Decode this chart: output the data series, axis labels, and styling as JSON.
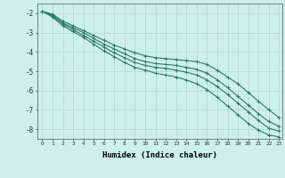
{
  "xlabel": "Humidex (Indice chaleur)",
  "ylabel": "",
  "background_color": "#cdf0e8",
  "grid_color": "#b0d8cc",
  "line_color": "#2d7a6a",
  "xlim": [
    -0.5,
    23.3
  ],
  "ylim": [
    -8.5,
    -1.5
  ],
  "xticks": [
    0,
    1,
    2,
    3,
    4,
    5,
    6,
    7,
    8,
    9,
    10,
    11,
    12,
    13,
    14,
    15,
    16,
    17,
    18,
    19,
    20,
    21,
    22,
    23
  ],
  "yticks": [
    -8,
    -7,
    -6,
    -5,
    -4,
    -3,
    -2
  ],
  "series": [
    [
      -1.9,
      -2.05,
      -2.4,
      -2.65,
      -2.9,
      -3.15,
      -3.4,
      -3.65,
      -3.85,
      -4.05,
      -4.2,
      -4.3,
      -4.35,
      -4.4,
      -4.45,
      -4.5,
      -4.65,
      -4.95,
      -5.3,
      -5.65,
      -6.1,
      -6.55,
      -7.0,
      -7.4
    ],
    [
      -1.9,
      -2.1,
      -2.5,
      -2.75,
      -3.0,
      -3.3,
      -3.6,
      -3.85,
      -4.1,
      -4.35,
      -4.5,
      -4.6,
      -4.65,
      -4.7,
      -4.8,
      -4.9,
      -5.1,
      -5.45,
      -5.85,
      -6.3,
      -6.75,
      -7.2,
      -7.6,
      -7.85
    ],
    [
      -1.9,
      -2.15,
      -2.55,
      -2.85,
      -3.15,
      -3.45,
      -3.75,
      -4.05,
      -4.3,
      -4.55,
      -4.7,
      -4.8,
      -4.85,
      -4.95,
      -5.05,
      -5.2,
      -5.45,
      -5.8,
      -6.2,
      -6.65,
      -7.1,
      -7.55,
      -7.95,
      -8.1
    ],
    [
      -1.9,
      -2.2,
      -2.65,
      -2.95,
      -3.25,
      -3.6,
      -3.95,
      -4.25,
      -4.55,
      -4.8,
      -4.95,
      -5.1,
      -5.2,
      -5.3,
      -5.45,
      -5.65,
      -5.95,
      -6.35,
      -6.8,
      -7.25,
      -7.7,
      -8.05,
      -8.3,
      -8.4
    ]
  ]
}
